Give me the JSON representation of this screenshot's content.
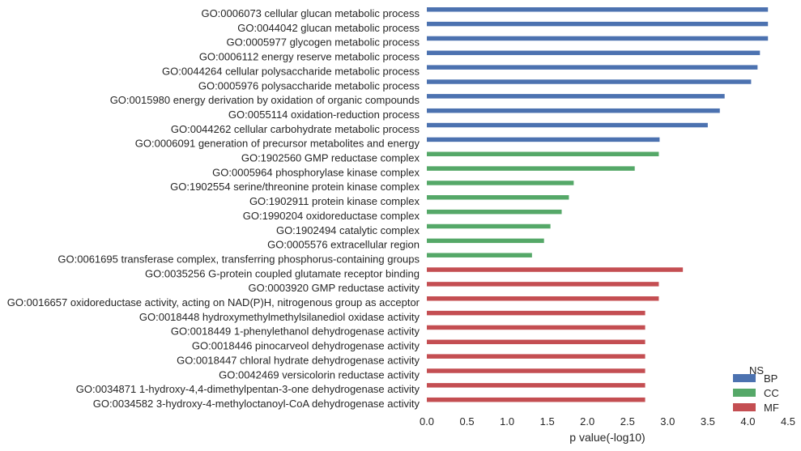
{
  "chart_data": {
    "type": "bar",
    "orientation": "horizontal",
    "xlabel": "p value(-log10)",
    "ylabel": "",
    "xlim": [
      0,
      4.5
    ],
    "xticks": [
      "0.0",
      "0.5",
      "1.0",
      "1.5",
      "2.0",
      "2.5",
      "3.0",
      "3.5",
      "4.0",
      "4.5"
    ],
    "grid": false,
    "legend": {
      "title": "NS",
      "position": "bottom-right",
      "entries": [
        {
          "name": "BP",
          "color": "#4c72b0"
        },
        {
          "name": "CC",
          "color": "#55a868"
        },
        {
          "name": "MF",
          "color": "#c44e52"
        }
      ]
    },
    "categories": [
      {
        "label": "GO:0006073 cellular glucan metabolic process",
        "group": "BP",
        "value": 4.25
      },
      {
        "label": "GO:0044042 glucan metabolic process",
        "group": "BP",
        "value": 4.25
      },
      {
        "label": "GO:0005977 glycogen metabolic process",
        "group": "BP",
        "value": 4.25
      },
      {
        "label": "GO:0006112 energy reserve metabolic process",
        "group": "BP",
        "value": 4.15
      },
      {
        "label": "GO:0044264 cellular polysaccharide metabolic process",
        "group": "BP",
        "value": 4.12
      },
      {
        "label": "GO:0005976 polysaccharide metabolic process",
        "group": "BP",
        "value": 4.04
      },
      {
        "label": "GO:0015980 energy derivation by oxidation of organic compounds",
        "group": "BP",
        "value": 3.71
      },
      {
        "label": "GO:0055114 oxidation-reduction process",
        "group": "BP",
        "value": 3.65
      },
      {
        "label": "GO:0044262 cellular carbohydrate metabolic process",
        "group": "BP",
        "value": 3.5
      },
      {
        "label": "GO:0006091 generation of precursor metabolites and energy",
        "group": "BP",
        "value": 2.9
      },
      {
        "label": "GO:1902560 GMP reductase complex",
        "group": "CC",
        "value": 2.89
      },
      {
        "label": "GO:0005964 phosphorylase kinase complex",
        "group": "CC",
        "value": 2.59
      },
      {
        "label": "GO:1902554 serine/threonine protein kinase complex",
        "group": "CC",
        "value": 1.83
      },
      {
        "label": "GO:1902911 protein kinase complex",
        "group": "CC",
        "value": 1.77
      },
      {
        "label": "GO:1990204 oxidoreductase complex",
        "group": "CC",
        "value": 1.68
      },
      {
        "label": "GO:1902494 catalytic complex",
        "group": "CC",
        "value": 1.54
      },
      {
        "label": "GO:0005576 extracellular region",
        "group": "CC",
        "value": 1.46
      },
      {
        "label": "GO:0061695 transferase complex, transferring phosphorus-containing groups",
        "group": "CC",
        "value": 1.31
      },
      {
        "label": "GO:0035256 G-protein coupled glutamate receptor binding",
        "group": "MF",
        "value": 3.19
      },
      {
        "label": "GO:0003920 GMP reductase activity",
        "group": "MF",
        "value": 2.89
      },
      {
        "label": "GO:0016657 oxidoreductase activity, acting on NAD(P)H, nitrogenous group as acceptor",
        "group": "MF",
        "value": 2.89
      },
      {
        "label": "GO:0018448 hydroxymethylmethylsilanediol oxidase activity",
        "group": "MF",
        "value": 2.72
      },
      {
        "label": "GO:0018449 1-phenylethanol dehydrogenase activity",
        "group": "MF",
        "value": 2.72
      },
      {
        "label": "GO:0018446 pinocarveol dehydrogenase activity",
        "group": "MF",
        "value": 2.72
      },
      {
        "label": "GO:0018447 chloral hydrate dehydrogenase activity",
        "group": "MF",
        "value": 2.72
      },
      {
        "label": "GO:0042469 versicolorin reductase activity",
        "group": "MF",
        "value": 2.72
      },
      {
        "label": "GO:0034871 1-hydroxy-4,4-dimethylpentan-3-one dehydrogenase activity",
        "group": "MF",
        "value": 2.72
      },
      {
        "label": "GO:0034582 3-hydroxy-4-methyloctanoyl-CoA dehydrogenase activity",
        "group": "MF",
        "value": 2.72
      }
    ]
  }
}
